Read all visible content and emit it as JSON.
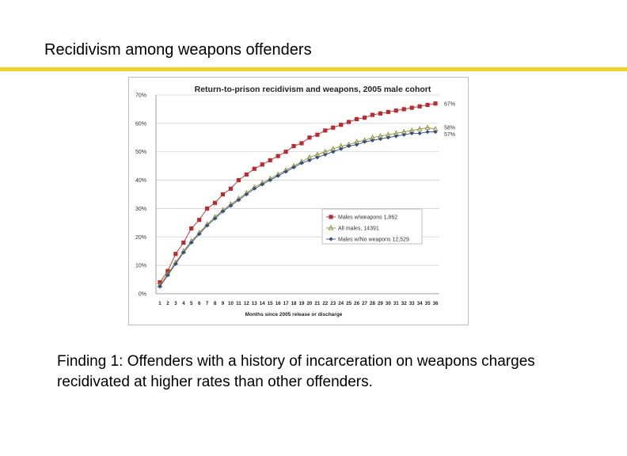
{
  "slide": {
    "title": "Recidivism among weapons offenders",
    "rule_color": "#f2d21e",
    "finding": "Finding 1: Offenders with a history of incarceration on weapons charges recidivated at higher rates than other offenders."
  },
  "chart_data": {
    "type": "line",
    "title": "Return-to-prison recidivism and weapons, 2005 male cohort",
    "xlabel": "Months since 2005 release or discharge",
    "ylabel": "",
    "x": [
      1,
      2,
      3,
      4,
      5,
      6,
      7,
      8,
      9,
      10,
      11,
      12,
      13,
      14,
      15,
      16,
      17,
      18,
      19,
      20,
      21,
      22,
      23,
      24,
      25,
      26,
      27,
      28,
      29,
      30,
      31,
      32,
      33,
      34,
      35,
      36
    ],
    "ylim": [
      0,
      70
    ],
    "yticks": [
      "0%",
      "10%",
      "20%",
      "30%",
      "40%",
      "50%",
      "60%",
      "70%"
    ],
    "grid": true,
    "legend": "right-middle",
    "series": [
      {
        "name": "Males w/weapons 1,862",
        "color": "#c0282d",
        "marker": "square",
        "end_label": "67%",
        "values": [
          4,
          8,
          14,
          18,
          23,
          26,
          30,
          32,
          35,
          37,
          40,
          42,
          44,
          45.5,
          47,
          48.5,
          50,
          52,
          53,
          55,
          56,
          57.5,
          58.5,
          59.5,
          60.5,
          61.5,
          62,
          63,
          63.5,
          64,
          64.5,
          65,
          65.5,
          66,
          66.5,
          67
        ]
      },
      {
        "name": "All males, 14391",
        "color": "#8c8c2a",
        "marker": "triangle",
        "end_label": "58%",
        "values": [
          3,
          7,
          11,
          15,
          18.5,
          21.5,
          24.5,
          27,
          29.5,
          31.5,
          33.5,
          35.5,
          37.5,
          39,
          40.5,
          42,
          43.5,
          45,
          46.5,
          48,
          49,
          50,
          51,
          52,
          52.5,
          53.5,
          54,
          55,
          55.5,
          56,
          56.5,
          57,
          57.5,
          58,
          58.5,
          58
        ]
      },
      {
        "name": "Males w/No weapons 12,529",
        "color": "#2e4f8a",
        "marker": "diamond",
        "end_label": "57%",
        "values": [
          2.5,
          6.5,
          10.5,
          14.5,
          18,
          21,
          24,
          26.5,
          29,
          31,
          33,
          35,
          37,
          38.5,
          40,
          41.5,
          43,
          44.5,
          46,
          47,
          48,
          49,
          50,
          51,
          52,
          52.5,
          53.5,
          54,
          54.5,
          55,
          55.5,
          56,
          56.5,
          56.5,
          57,
          57
        ]
      }
    ]
  }
}
